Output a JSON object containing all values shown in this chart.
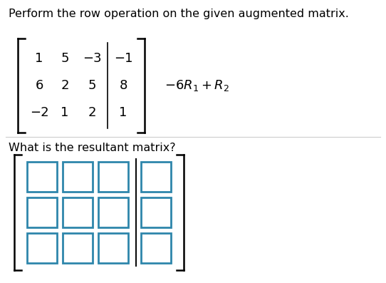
{
  "title_text": "Perform the row operation on the given augmented matrix.",
  "matrix_rows": [
    [
      "1",
      "5",
      "−3",
      "−1"
    ],
    [
      "6",
      "2",
      "5",
      "8"
    ],
    [
      "−2",
      "1",
      "2",
      "1"
    ]
  ],
  "operation_text": "$-6R_1+R_2$",
  "question_text": "What is the resultant matrix?",
  "answer_rows": 3,
  "answer_cols": 4,
  "bg_color": "#ffffff",
  "text_color": "#000000",
  "box_color": "#2e86ab",
  "divider_color": "#cccccc"
}
